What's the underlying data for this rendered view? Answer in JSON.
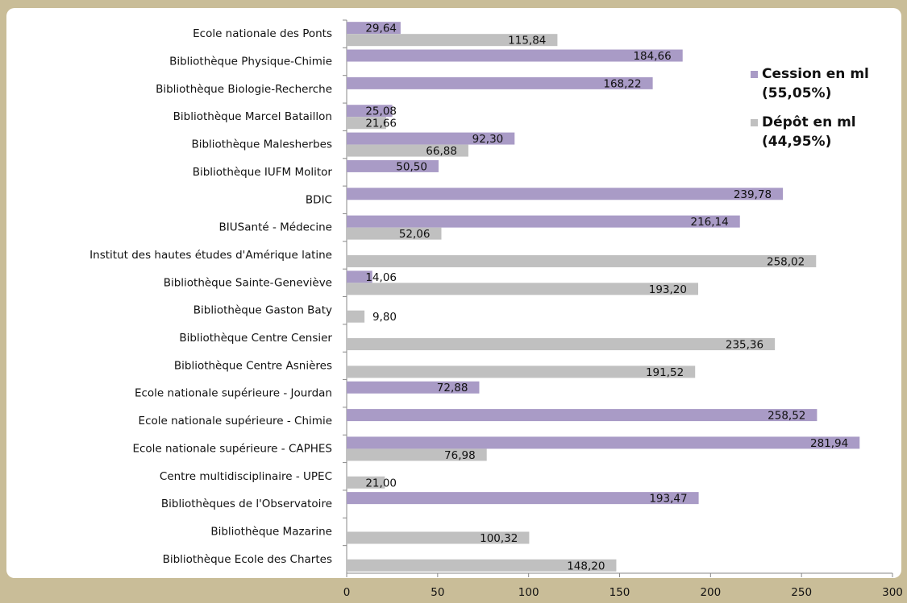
{
  "chart_data": {
    "type": "bar",
    "orientation": "horizontal",
    "legend_position": "top-right",
    "categories": [
      "Ecole nationale des Ponts",
      "Bibliothèque Physique-Chimie",
      "Bibliothèque Biologie-Recherche",
      "Bibliothèque Marcel Bataillon",
      "Bibliothèque Malesherbes",
      "Bibliothèque IUFM Molitor",
      "BDIC",
      "BIUSanté - Médecine",
      "Institut des hautes études d'Amérique latine",
      "Bibliothèque Sainte-Geneviève",
      "Bibliothèque Gaston Baty",
      "Bibliothèque Centre Censier",
      "Bibliothèque Centre Asnières",
      "Ecole nationale supérieure - Jourdan",
      "Ecole nationale supérieure - Chimie",
      "Ecole nationale supérieure - CAPHES",
      "Centre multidisciplinaire - UPEC",
      "Bibliothèques de l'Observatoire",
      "Bibliothèque Mazarine",
      "Bibliothèque Ecole des Chartes"
    ],
    "series": [
      {
        "name": "Cession en ml (55,05%)",
        "color": "#a99bc6",
        "values": [
          29.64,
          184.66,
          168.22,
          25.08,
          92.3,
          50.5,
          239.78,
          216.14,
          null,
          14.06,
          null,
          null,
          null,
          72.88,
          258.52,
          281.94,
          null,
          193.47,
          null,
          null
        ],
        "value_labels": [
          "29,64",
          "184,66",
          "168,22",
          "25,08",
          "92,30",
          "50,50",
          "239,78",
          "216,14",
          null,
          "14,06",
          null,
          null,
          null,
          "72,88",
          "258,52",
          "281,94",
          null,
          "193,47",
          null,
          null
        ]
      },
      {
        "name": "Dépôt en ml (44,95%)",
        "color": "#c0c0c0",
        "values": [
          115.84,
          null,
          null,
          21.66,
          66.88,
          null,
          null,
          52.06,
          258.02,
          193.2,
          9.8,
          235.36,
          191.52,
          null,
          null,
          76.98,
          21.0,
          null,
          100.32,
          148.2
        ],
        "value_labels": [
          "115,84",
          null,
          null,
          "21,66",
          "66,88",
          null,
          null,
          "52,06",
          "258,02",
          "193,20",
          "9,80",
          "235,36",
          "191,52",
          null,
          null,
          "76,98",
          "21,00",
          null,
          "100,32",
          "148,20"
        ]
      }
    ],
    "xlim": [
      0,
      300
    ],
    "xticks": [
      0,
      50,
      100,
      150,
      200,
      250,
      300
    ]
  }
}
